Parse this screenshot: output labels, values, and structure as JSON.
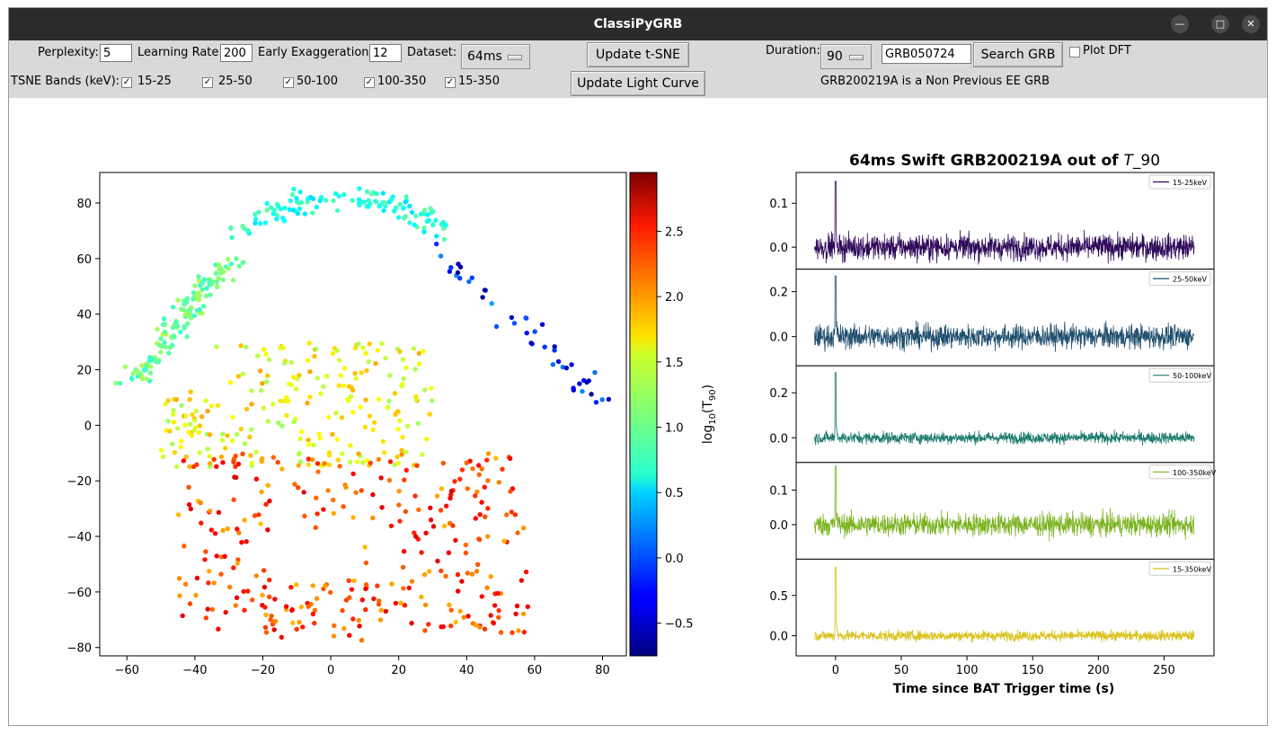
{
  "window": {
    "title": "ClassiPyGRB"
  },
  "toolbar": {
    "perplexity_label": "Perplexity:",
    "perplexity_value": "5",
    "learning_rate_label": "Learning Rate:",
    "learning_rate_value": "200",
    "early_exag_label": "Early Exaggeration:",
    "early_exag_value": "12",
    "dataset_label": "Dataset:",
    "dataset_value": "64ms",
    "update_tsne_label": "Update t-SNE",
    "update_lc_label": "Update Light Curve",
    "duration_label": "Duration:",
    "duration_value": "90",
    "grb_value": "GRB050724",
    "search_label": "Search GRB",
    "plot_dft_label": "Plot DFT",
    "tsne_bands_label": "TSNE Bands (keV):",
    "bands": [
      "15-25",
      "25-50",
      "50-100",
      "100-350",
      "15-350"
    ],
    "status_text": "GRB200219A is a Non Previous EE GRB"
  },
  "chart_data": [
    {
      "type": "scatter",
      "title": "",
      "xlabel": "",
      "ylabel": "",
      "xticks": [
        "−60",
        "−40",
        "−20",
        "0",
        "20",
        "40",
        "60",
        "80"
      ],
      "yticks": [
        "80",
        "60",
        "40",
        "20",
        "0",
        "−20",
        "−40",
        "−60",
        "−80"
      ],
      "xlim": [
        -68,
        87
      ],
      "ylim": [
        -83,
        91
      ],
      "colormap": "jet",
      "colorbar": {
        "label": "log10(T90)",
        "label_main": "log",
        "label_sub1": "10",
        "label_mid": "(T",
        "label_sub2": "90",
        "label_end": ")",
        "range": [
          -0.75,
          2.95
        ],
        "ticks": [
          "2.5",
          "2.0",
          "1.5",
          "1.0",
          "0.5",
          "0.0",
          "−0.5"
        ]
      },
      "clusters": [
        {
          "region": "top arc",
          "x_range": [
            -30,
            35
          ],
          "y_range": [
            55,
            82
          ],
          "log_t90_range": [
            0.5,
            1.0
          ]
        },
        {
          "region": "left arc",
          "x_range": [
            -62,
            -25
          ],
          "y_range": [
            15,
            60
          ],
          "log_t90_range": [
            0.8,
            1.3
          ]
        },
        {
          "region": "center",
          "x_range": [
            -50,
            30
          ],
          "y_range": [
            -15,
            30
          ],
          "log_t90_range": [
            1.2,
            1.9
          ]
        },
        {
          "region": "lower right",
          "x_range": [
            -45,
            58
          ],
          "y_range": [
            -75,
            -10
          ],
          "log_t90_range": [
            1.8,
            2.6
          ]
        },
        {
          "region": "short GRB tail",
          "x_range": [
            30,
            80
          ],
          "y_range": [
            8,
            66
          ],
          "log_t90_range": [
            -0.7,
            0.3
          ]
        }
      ]
    },
    {
      "type": "line",
      "title_prefix": "64ms Swift GRB200219A out of ",
      "title_italic": "T",
      "title_suffix": "_90",
      "xlabel": "Time since BAT Trigger time (s)",
      "xticks": [
        "0",
        "50",
        "100",
        "150",
        "200",
        "250"
      ],
      "xlim": [
        -30,
        288
      ],
      "series": [
        {
          "name": "15-25keV",
          "color": "#2f0a5a",
          "ylim": [
            -0.05,
            0.17
          ],
          "yticks": [
            "0.1",
            "0.0"
          ],
          "peak": 0.15,
          "noise": 0.022
        },
        {
          "name": "25-50keV",
          "color": "#1f4e6e",
          "ylim": [
            -0.13,
            0.3
          ],
          "yticks": [
            "0.2",
            "0.0"
          ],
          "peak": 0.27,
          "noise": 0.04
        },
        {
          "name": "50-100keV",
          "color": "#1a7a6d",
          "ylim": [
            -0.11,
            0.32
          ],
          "yticks": [
            "0.2",
            "0.0"
          ],
          "peak": 0.29,
          "noise": 0.02
        },
        {
          "name": "100-350keV",
          "color": "#7ab31f",
          "ylim": [
            -0.1,
            0.18
          ],
          "yticks": [
            "0.1",
            "0.0"
          ],
          "peak": 0.17,
          "noise": 0.025
        },
        {
          "name": "15-350keV",
          "color": "#d9c21a",
          "ylim": [
            -0.25,
            0.95
          ],
          "yticks": [
            "0.5",
            "0.0"
          ],
          "peak": 0.85,
          "noise": 0.05
        }
      ]
    }
  ]
}
